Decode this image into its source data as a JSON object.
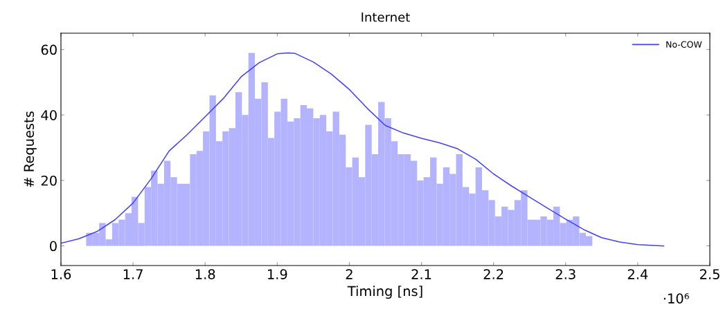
{
  "chart_data": {
    "type": "histogram",
    "title": "Internet",
    "xlabel": "Timing [ns]",
    "ylabel": "# Requests",
    "bins": [
      1.635,
      1.644,
      1.653,
      1.662,
      1.671,
      1.68,
      1.689,
      1.698,
      1.707,
      1.716,
      1.725,
      1.734,
      1.743,
      1.752,
      1.761,
      1.77,
      1.779,
      1.788,
      1.797,
      1.806,
      1.815,
      1.824,
      1.833,
      1.842,
      1.851,
      1.86,
      1.869,
      1.878,
      1.887,
      1.896,
      1.905,
      1.914,
      1.923,
      1.932,
      1.941,
      1.95,
      1.959,
      1.968,
      1.977,
      1.986,
      1.995,
      2.004,
      2.013,
      2.022,
      2.031,
      2.04,
      2.049,
      2.058,
      2.067,
      2.076,
      2.085,
      2.094,
      2.103,
      2.112,
      2.121,
      2.13,
      2.139,
      2.148,
      2.157,
      2.166,
      2.175,
      2.184,
      2.193,
      2.202,
      2.211,
      2.22,
      2.229,
      2.238,
      2.247,
      2.256,
      2.265,
      2.274,
      2.283,
      2.292,
      2.301,
      2.31,
      2.319,
      2.328,
      2.337
    ],
    "values": [
      4,
      4,
      7,
      2,
      7,
      8,
      10,
      15,
      7,
      18,
      23,
      19,
      26,
      21,
      19,
      19,
      28,
      29,
      35,
      46,
      32,
      35,
      36,
      47,
      40,
      59,
      45,
      50,
      33,
      41,
      45,
      38,
      39,
      43,
      42,
      39,
      40,
      35,
      41,
      34,
      24,
      27,
      21,
      37,
      28,
      44,
      39,
      32,
      28,
      28,
      26,
      20,
      21,
      27,
      19,
      24,
      22,
      28,
      18,
      16,
      24,
      17,
      14,
      9,
      12,
      11,
      14,
      17,
      8,
      8,
      9,
      8,
      12,
      7,
      8,
      9,
      4,
      3
    ],
    "color": "#b3b3ff",
    "series": [
      {
        "type": "line",
        "name": "No-COW",
        "color": "#4040ff",
        "x": [
          1.6,
          1.625,
          1.65,
          1.675,
          1.7,
          1.725,
          1.75,
          1.775,
          1.8,
          1.825,
          1.85,
          1.875,
          1.9,
          1.915,
          1.925,
          1.95,
          1.975,
          2.0,
          2.025,
          2.05,
          2.075,
          2.1,
          2.125,
          2.15,
          2.175,
          2.2,
          2.225,
          2.25,
          2.275,
          2.3,
          2.325,
          2.35,
          2.375,
          2.4,
          2.436
        ],
        "values": [
          0.8,
          2.2,
          4.4,
          8,
          13.1,
          20.5,
          29,
          34,
          39.5,
          45,
          51.7,
          56,
          58.7,
          59,
          58.8,
          56.2,
          52.5,
          47.8,
          42,
          36.8,
          34.5,
          32.9,
          31.5,
          29.7,
          26.5,
          22,
          18.3,
          14.9,
          11.5,
          8.2,
          5,
          2.5,
          1.2,
          0.4,
          0
        ]
      }
    ],
    "xlim": [
      1.6,
      2.5
    ],
    "xticks": [
      1.6,
      1.7,
      1.8,
      1.9,
      2,
      2.1,
      2.2,
      2.3,
      2.4,
      2.5
    ],
    "ylim": [
      -6,
      65
    ],
    "yticks": [
      0,
      20,
      40,
      60
    ],
    "legend": "top right",
    "grid": false,
    "annotations": [
      "·10⁶"
    ]
  }
}
